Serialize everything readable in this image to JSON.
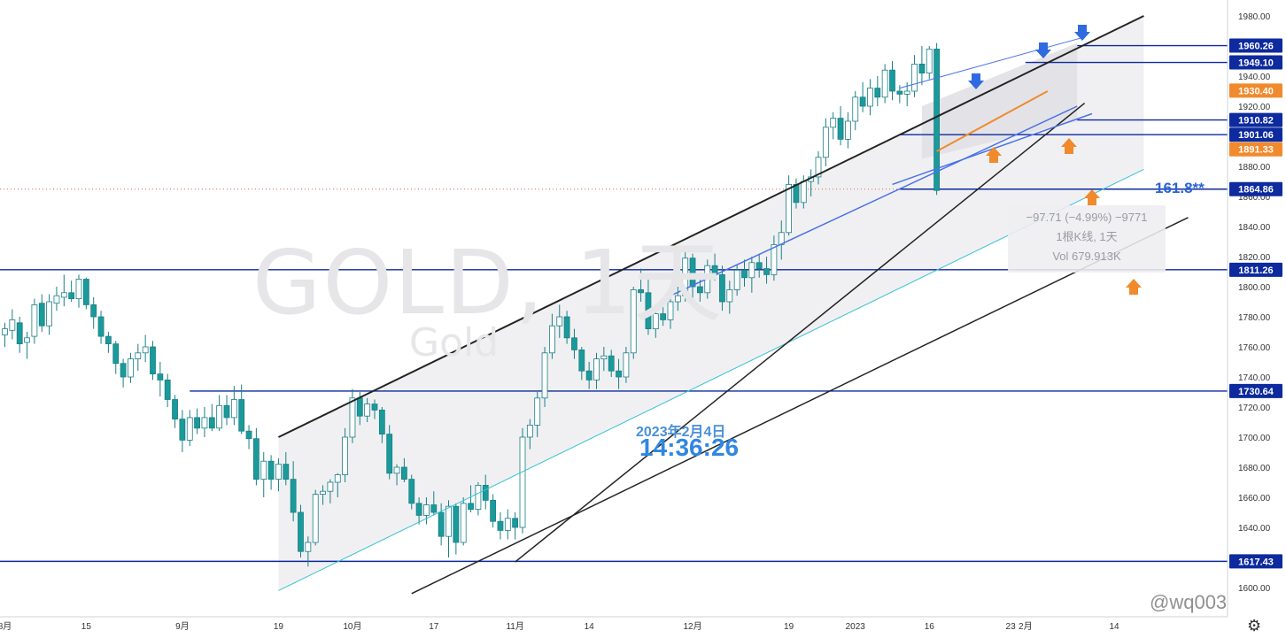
{
  "header": {
    "watermark_title": "GOLD, 1天",
    "watermark_sub": "Gold"
  },
  "timestamp": {
    "date": "2023年2月4日",
    "time": "14:36:26"
  },
  "fib_label": "161.8**",
  "tooltip": {
    "change": "−97.71 (−4.99%) −9771",
    "bars": "1根K线, 1天",
    "volume": "Vol 679.913K"
  },
  "brand": "@wq003",
  "colors": {
    "up": "#ffffff",
    "down": "#1a9a9a",
    "accent_blue": "#0d2a9e",
    "orange": "#f08a2c",
    "channel_fill": "#ededf0"
  },
  "chart_data": {
    "type": "candlestick",
    "title": "GOLD, 1天",
    "ylim": [
      1600,
      1980
    ],
    "y_ticks": [
      1600,
      1620,
      1640,
      1660,
      1680,
      1700,
      1720,
      1740,
      1760,
      1780,
      1800,
      1820,
      1840,
      1860,
      1880,
      1900,
      1920,
      1940,
      1960,
      1980
    ],
    "y_tick_labels": [
      "1600.00",
      "1620.00",
      "1640.00",
      "1660.00",
      "1680.00",
      "1700.00",
      "1720.00",
      "1740.00",
      "1760.00",
      "1780.00",
      "1800.00",
      "1820.00",
      "1840.00",
      "1860.00",
      "1880.00",
      "1900.00",
      "1920.00",
      "1940.00",
      "1960.00",
      "1980.00"
    ],
    "x_ticks": [
      {
        "label": "8月",
        "bar": 0
      },
      {
        "label": "15",
        "bar": 11
      },
      {
        "label": "9月",
        "bar": 24
      },
      {
        "label": "19",
        "bar": 37
      },
      {
        "label": "10月",
        "bar": 47
      },
      {
        "label": "17",
        "bar": 58
      },
      {
        "label": "11月",
        "bar": 69
      },
      {
        "label": "14",
        "bar": 79
      },
      {
        "label": "12月",
        "bar": 93
      },
      {
        "label": "19",
        "bar": 106
      },
      {
        "label": "2023",
        "bar": 115
      },
      {
        "label": "16",
        "bar": 125
      },
      {
        "label": "23",
        "bar": 136
      },
      {
        "label": "2月",
        "bar": 138
      },
      {
        "label": "14",
        "bar": 150
      }
    ],
    "price_levels": [
      {
        "value": 1960.26,
        "label": "1960.26",
        "color": "#0d2a9e"
      },
      {
        "value": 1949.1,
        "label": "1949.10",
        "color": "#0d2a9e"
      },
      {
        "value": 1930.4,
        "label": "1930.40",
        "color": "#f08a2c"
      },
      {
        "value": 1910.82,
        "label": "1910.82",
        "color": "#0d2a9e"
      },
      {
        "value": 1901.06,
        "label": "1901.06",
        "color": "#0d2a9e"
      },
      {
        "value": 1891.33,
        "label": "1891.33",
        "color": "#f08a2c"
      },
      {
        "value": 1864.86,
        "label": "1864.86",
        "color": "#0d2a9e"
      },
      {
        "value": 1811.26,
        "label": "1811.26",
        "color": "#0d2a9e"
      },
      {
        "value": 1730.64,
        "label": "1730.64",
        "color": "#0d2a9e"
      },
      {
        "value": 1617.43,
        "label": "1617.43",
        "color": "#0d2a9e"
      }
    ],
    "candles": [
      [
        1768,
        1776,
        1760,
        1772
      ],
      [
        1771,
        1785,
        1765,
        1778
      ],
      [
        1776,
        1780,
        1756,
        1762
      ],
      [
        1763,
        1770,
        1752,
        1766
      ],
      [
        1767,
        1792,
        1762,
        1788
      ],
      [
        1789,
        1795,
        1770,
        1774
      ],
      [
        1774,
        1795,
        1768,
        1790
      ],
      [
        1789,
        1800,
        1784,
        1794
      ],
      [
        1793,
        1808,
        1787,
        1796
      ],
      [
        1796,
        1804,
        1790,
        1792
      ],
      [
        1792,
        1808,
        1786,
        1805
      ],
      [
        1805,
        1806,
        1785,
        1788
      ],
      [
        1788,
        1793,
        1772,
        1780
      ],
      [
        1780,
        1784,
        1762,
        1767
      ],
      [
        1767,
        1770,
        1756,
        1762
      ],
      [
        1762,
        1764,
        1742,
        1749
      ],
      [
        1749,
        1752,
        1733,
        1740
      ],
      [
        1740,
        1756,
        1736,
        1752
      ],
      [
        1752,
        1762,
        1744,
        1756
      ],
      [
        1756,
        1768,
        1750,
        1760
      ],
      [
        1760,
        1764,
        1738,
        1742
      ],
      [
        1742,
        1750,
        1727,
        1738
      ],
      [
        1738,
        1742,
        1720,
        1725
      ],
      [
        1725,
        1728,
        1706,
        1712
      ],
      [
        1712,
        1718,
        1690,
        1698
      ],
      [
        1698,
        1718,
        1694,
        1713
      ],
      [
        1713,
        1719,
        1702,
        1706
      ],
      [
        1706,
        1720,
        1700,
        1713
      ],
      [
        1713,
        1722,
        1704,
        1706
      ],
      [
        1706,
        1728,
        1704,
        1721
      ],
      [
        1721,
        1728,
        1708,
        1713
      ],
      [
        1713,
        1734,
        1708,
        1725
      ],
      [
        1725,
        1735,
        1702,
        1704
      ],
      [
        1704,
        1708,
        1692,
        1699
      ],
      [
        1699,
        1706,
        1668,
        1672
      ],
      [
        1672,
        1690,
        1660,
        1684
      ],
      [
        1684,
        1688,
        1665,
        1672
      ],
      [
        1672,
        1686,
        1664,
        1682
      ],
      [
        1682,
        1690,
        1668,
        1672
      ],
      [
        1672,
        1684,
        1644,
        1650
      ],
      [
        1650,
        1655,
        1620,
        1624
      ],
      [
        1624,
        1634,
        1614,
        1630
      ],
      [
        1630,
        1665,
        1628,
        1662
      ],
      [
        1662,
        1668,
        1655,
        1664
      ],
      [
        1664,
        1672,
        1656,
        1670
      ],
      [
        1670,
        1676,
        1660,
        1675
      ],
      [
        1675,
        1706,
        1670,
        1700
      ],
      [
        1700,
        1732,
        1696,
        1726
      ],
      [
        1726,
        1730,
        1708,
        1714
      ],
      [
        1714,
        1726,
        1710,
        1722
      ],
      [
        1722,
        1725,
        1712,
        1718
      ],
      [
        1718,
        1720,
        1696,
        1702
      ],
      [
        1702,
        1708,
        1672,
        1676
      ],
      [
        1676,
        1682,
        1668,
        1680
      ],
      [
        1680,
        1686,
        1670,
        1672
      ],
      [
        1672,
        1675,
        1652,
        1656
      ],
      [
        1656,
        1660,
        1642,
        1648
      ],
      [
        1648,
        1660,
        1642,
        1655
      ],
      [
        1655,
        1664,
        1648,
        1650
      ],
      [
        1650,
        1656,
        1628,
        1634
      ],
      [
        1634,
        1658,
        1620,
        1654
      ],
      [
        1654,
        1656,
        1622,
        1630
      ],
      [
        1630,
        1660,
        1628,
        1656
      ],
      [
        1656,
        1668,
        1650,
        1652
      ],
      [
        1652,
        1670,
        1648,
        1668
      ],
      [
        1668,
        1675,
        1652,
        1658
      ],
      [
        1658,
        1662,
        1640,
        1644
      ],
      [
        1644,
        1650,
        1632,
        1638
      ],
      [
        1638,
        1652,
        1632,
        1646
      ],
      [
        1646,
        1650,
        1632,
        1640
      ],
      [
        1640,
        1706,
        1636,
        1700
      ],
      [
        1700,
        1712,
        1692,
        1708
      ],
      [
        1708,
        1730,
        1700,
        1726
      ],
      [
        1726,
        1760,
        1720,
        1756
      ],
      [
        1756,
        1782,
        1752,
        1774
      ],
      [
        1774,
        1788,
        1766,
        1780
      ],
      [
        1780,
        1784,
        1762,
        1766
      ],
      [
        1766,
        1772,
        1752,
        1758
      ],
      [
        1758,
        1760,
        1738,
        1744
      ],
      [
        1744,
        1750,
        1732,
        1738
      ],
      [
        1738,
        1756,
        1732,
        1752
      ],
      [
        1752,
        1760,
        1744,
        1754
      ],
      [
        1754,
        1758,
        1740,
        1744
      ],
      [
        1744,
        1752,
        1732,
        1740
      ],
      [
        1740,
        1760,
        1736,
        1756
      ],
      [
        1756,
        1800,
        1752,
        1798
      ],
      [
        1798,
        1812,
        1790,
        1796
      ],
      [
        1796,
        1808,
        1768,
        1772
      ],
      [
        1772,
        1786,
        1766,
        1782
      ],
      [
        1782,
        1792,
        1774,
        1778
      ],
      [
        1778,
        1796,
        1772,
        1790
      ],
      [
        1790,
        1800,
        1784,
        1794
      ],
      [
        1794,
        1825,
        1790,
        1819
      ],
      [
        1819,
        1822,
        1792,
        1800
      ],
      [
        1800,
        1806,
        1790,
        1796
      ],
      [
        1796,
        1818,
        1792,
        1814
      ],
      [
        1814,
        1822,
        1804,
        1808
      ],
      [
        1808,
        1814,
        1784,
        1790
      ],
      [
        1790,
        1804,
        1782,
        1798
      ],
      [
        1798,
        1815,
        1794,
        1811
      ],
      [
        1811,
        1818,
        1800,
        1806
      ],
      [
        1806,
        1820,
        1796,
        1816
      ],
      [
        1816,
        1822,
        1806,
        1812
      ],
      [
        1812,
        1820,
        1802,
        1808
      ],
      [
        1808,
        1834,
        1804,
        1828
      ],
      [
        1828,
        1844,
        1818,
        1836
      ],
      [
        1836,
        1874,
        1834,
        1868
      ],
      [
        1868,
        1872,
        1852,
        1856
      ],
      [
        1856,
        1874,
        1852,
        1870
      ],
      [
        1870,
        1878,
        1860,
        1873
      ],
      [
        1873,
        1890,
        1868,
        1886
      ],
      [
        1886,
        1912,
        1880,
        1906
      ],
      [
        1906,
        1916,
        1898,
        1912
      ],
      [
        1912,
        1920,
        1894,
        1898
      ],
      [
        1898,
        1916,
        1892,
        1910
      ],
      [
        1910,
        1930,
        1904,
        1926
      ],
      [
        1926,
        1936,
        1916,
        1920
      ],
      [
        1920,
        1938,
        1914,
        1932
      ],
      [
        1932,
        1940,
        1920,
        1926
      ],
      [
        1926,
        1948,
        1922,
        1944
      ],
      [
        1944,
        1950,
        1924,
        1930
      ],
      [
        1930,
        1934,
        1922,
        1928
      ],
      [
        1928,
        1936,
        1920,
        1930
      ],
      [
        1930,
        1954,
        1926,
        1948
      ],
      [
        1948,
        1960,
        1934,
        1942
      ],
      [
        1942,
        1960,
        1938,
        1958
      ],
      [
        1958,
        1962,
        1861,
        1864
      ]
    ],
    "channels": [
      {
        "name": "upper_channel_line",
        "color": "#222222",
        "width": 2,
        "points": [
          [
            37,
            1700
          ],
          [
            154,
            1980
          ]
        ]
      },
      {
        "name": "lower_channel_line",
        "color": "#38c2d2",
        "width": 1,
        "points": [
          [
            37,
            1598
          ],
          [
            154,
            1878
          ]
        ]
      },
      {
        "name": "trend_from_nov",
        "color": "#222222",
        "width": 1.5,
        "points": [
          [
            69,
            1617
          ],
          [
            146,
            1922
          ]
        ]
      },
      {
        "name": "trend_long",
        "color": "#222222",
        "width": 1.5,
        "points": [
          [
            55,
            1596
          ],
          [
            160,
            1846
          ]
        ]
      },
      {
        "name": "blue_trend_dec",
        "color": "#4a72e8",
        "width": 1.5,
        "points": [
          [
            90,
            1794
          ],
          [
            145,
            1920
          ]
        ]
      },
      {
        "name": "orange_channel",
        "color": "#f08a2c",
        "width": 2,
        "points": [
          [
            126,
            1890
          ],
          [
            141,
            1930
          ]
        ]
      }
    ]
  }
}
